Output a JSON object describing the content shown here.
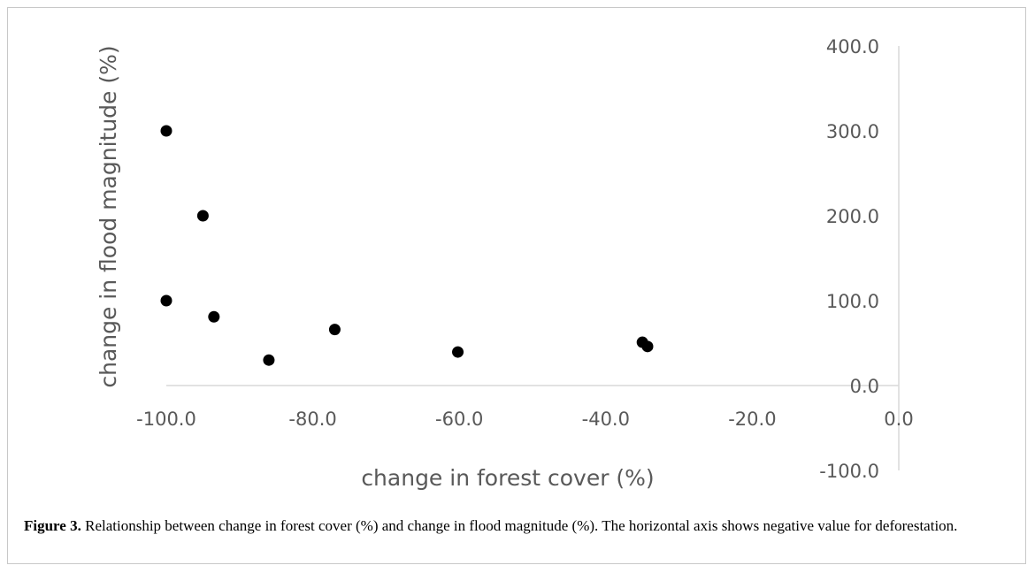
{
  "chart_data": {
    "type": "scatter",
    "xlabel": "change in forest cover (%)",
    "ylabel": "change in flood magnitude (%)",
    "xlim": [
      -100,
      0
    ],
    "ylim": [
      -100,
      400
    ],
    "x_ticks": [
      "-100.0",
      "-80.0",
      "-60.0",
      "-40.0",
      "-20.0",
      "0.0"
    ],
    "y_ticks": [
      "400.0",
      "300.0",
      "200.0",
      "100.0",
      "0.0",
      "-100.0"
    ],
    "grid": false,
    "marker_color": "#000000",
    "points": [
      {
        "x": -100.0,
        "y": 300.0
      },
      {
        "x": -95.0,
        "y": 200.0
      },
      {
        "x": -100.0,
        "y": 100.0
      },
      {
        "x": -93.5,
        "y": 81.0
      },
      {
        "x": -86.0,
        "y": 30.0
      },
      {
        "x": -77.0,
        "y": 66.0
      },
      {
        "x": -60.2,
        "y": 39.5
      },
      {
        "x": -35.0,
        "y": 51.0
      },
      {
        "x": -34.3,
        "y": 46.0
      }
    ]
  },
  "caption": {
    "label": "Figure 3.",
    "text": "Relationship between change in forest cover (%) and change in flood magnitude (%). The horizontal axis shows negative value for deforestation."
  }
}
